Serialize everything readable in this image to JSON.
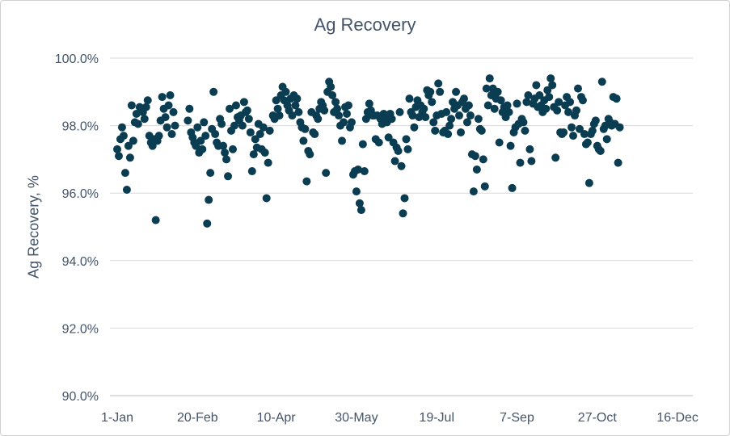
{
  "chart_data": {
    "type": "scatter",
    "title": "Ag Recovery",
    "xlabel": "",
    "ylabel": "Ag Recovery, %",
    "xlim": [
      0,
      357
    ],
    "ylim": [
      90.0,
      100.0
    ],
    "y_ticks": [
      {
        "value": 90,
        "label": "90.0%"
      },
      {
        "value": 92,
        "label": "92.0%"
      },
      {
        "value": 94,
        "label": "94.0%"
      },
      {
        "value": 96,
        "label": "96.0%"
      },
      {
        "value": 98,
        "label": "98.0%"
      },
      {
        "value": 100,
        "label": "100.0%"
      }
    ],
    "x_ticks": [
      {
        "value": 0,
        "label": "1-Jan"
      },
      {
        "value": 50,
        "label": "20-Feb"
      },
      {
        "value": 99,
        "label": "10-Apr"
      },
      {
        "value": 149,
        "label": "30-May"
      },
      {
        "value": 199,
        "label": "19-Jul"
      },
      {
        "value": 249,
        "label": "7-Sep"
      },
      {
        "value": 299,
        "label": "27-Oct"
      },
      {
        "value": 349,
        "label": "16-Dec"
      }
    ],
    "grid": "horizontal",
    "marker_color": "#0b3d52",
    "series": [
      {
        "points": [
          [
            0,
            97.3
          ],
          [
            1,
            97.1
          ],
          [
            2,
            97.6
          ],
          [
            3,
            97.95
          ],
          [
            4,
            97.7
          ],
          [
            5,
            96.6
          ],
          [
            6,
            96.1
          ],
          [
            7,
            97.4
          ],
          [
            8,
            97.05
          ],
          [
            9,
            98.6
          ],
          [
            10,
            97.55
          ],
          [
            11,
            98.1
          ],
          [
            12,
            98.35
          ],
          [
            13,
            98.05
          ],
          [
            14,
            98.55
          ],
          [
            15,
            98.5
          ],
          [
            16,
            98.4
          ],
          [
            17,
            98.2
          ],
          [
            18,
            98.55
          ],
          [
            19,
            98.75
          ],
          [
            20,
            97.7
          ],
          [
            21,
            97.5
          ],
          [
            22,
            97.4
          ],
          [
            23,
            97.6
          ],
          [
            24,
            95.2
          ],
          [
            25,
            97.55
          ],
          [
            26,
            97.7
          ],
          [
            27,
            98.15
          ],
          [
            28,
            98.85
          ],
          [
            29,
            98.5
          ],
          [
            30,
            98.25
          ],
          [
            31,
            97.95
          ],
          [
            32,
            98.6
          ],
          [
            33,
            98.9
          ],
          [
            34,
            97.75
          ],
          [
            35,
            98.4
          ],
          [
            36,
            98.0
          ],
          [
            44,
            98.15
          ],
          [
            45,
            98.5
          ],
          [
            46,
            97.8
          ],
          [
            47,
            97.65
          ],
          [
            48,
            97.5
          ],
          [
            49,
            97.4
          ],
          [
            50,
            97.95
          ],
          [
            51,
            97.2
          ],
          [
            52,
            97.55
          ],
          [
            53,
            97.3
          ],
          [
            54,
            98.1
          ],
          [
            55,
            97.7
          ],
          [
            56,
            95.1
          ],
          [
            57,
            95.8
          ],
          [
            58,
            96.6
          ],
          [
            59,
            97.9
          ],
          [
            60,
            99.0
          ],
          [
            61,
            97.75
          ],
          [
            62,
            97.5
          ],
          [
            63,
            97.4
          ],
          [
            64,
            98.2
          ],
          [
            65,
            98.05
          ],
          [
            66,
            97.4
          ],
          [
            67,
            97.2
          ],
          [
            68,
            97.0
          ],
          [
            69,
            96.5
          ],
          [
            70,
            98.5
          ],
          [
            71,
            97.85
          ],
          [
            72,
            97.3
          ],
          [
            73,
            98.0
          ],
          [
            74,
            98.6
          ],
          [
            75,
            98.25
          ],
          [
            76,
            98.15
          ],
          [
            77,
            98.3
          ],
          [
            78,
            98.0
          ],
          [
            79,
            98.7
          ],
          [
            80,
            98.4
          ],
          [
            81,
            98.45
          ],
          [
            82,
            98.2
          ],
          [
            83,
            97.8
          ],
          [
            84,
            96.65
          ],
          [
            85,
            97.15
          ],
          [
            86,
            97.6
          ],
          [
            87,
            97.35
          ],
          [
            88,
            98.05
          ],
          [
            89,
            97.75
          ],
          [
            90,
            97.3
          ],
          [
            91,
            97.95
          ],
          [
            92,
            97.2
          ],
          [
            93,
            95.85
          ],
          [
            94,
            96.9
          ],
          [
            95,
            97.85
          ],
          [
            97,
            98.3
          ],
          [
            98,
            98.2
          ],
          [
            99,
            98.75
          ],
          [
            100,
            98.5
          ],
          [
            101,
            98.3
          ],
          [
            102,
            98.9
          ],
          [
            103,
            99.15
          ],
          [
            104,
            98.75
          ],
          [
            105,
            99.0
          ],
          [
            106,
            98.6
          ],
          [
            107,
            98.45
          ],
          [
            108,
            98.8
          ],
          [
            109,
            98.3
          ],
          [
            110,
            98.9
          ],
          [
            111,
            98.6
          ],
          [
            112,
            98.8
          ],
          [
            113,
            98.4
          ],
          [
            114,
            98.1
          ],
          [
            115,
            97.95
          ],
          [
            116,
            97.55
          ],
          [
            117,
            97.9
          ],
          [
            118,
            96.35
          ],
          [
            119,
            97.25
          ],
          [
            120,
            97.15
          ],
          [
            121,
            98.4
          ],
          [
            122,
            97.8
          ],
          [
            123,
            97.75
          ],
          [
            124,
            98.3
          ],
          [
            125,
            98.2
          ],
          [
            126,
            98.5
          ],
          [
            127,
            98.7
          ],
          [
            128,
            98.6
          ],
          [
            129,
            98.45
          ],
          [
            130,
            96.6
          ],
          [
            131,
            99.0
          ],
          [
            132,
            99.3
          ],
          [
            133,
            99.15
          ],
          [
            134,
            98.9
          ],
          [
            135,
            98.4
          ],
          [
            136,
            98.7
          ],
          [
            137,
            98.5
          ],
          [
            138,
            98.3
          ],
          [
            139,
            98.0
          ],
          [
            140,
            97.55
          ],
          [
            141,
            98.1
          ],
          [
            142,
            98.55
          ],
          [
            143,
            98.35
          ],
          [
            144,
            98.6
          ],
          [
            145,
            97.95
          ],
          [
            146,
            98.1
          ],
          [
            147,
            96.55
          ],
          [
            148,
            96.65
          ],
          [
            149,
            96.05
          ],
          [
            150,
            96.7
          ],
          [
            151,
            95.7
          ],
          [
            152,
            95.5
          ],
          [
            153,
            97.45
          ],
          [
            154,
            96.65
          ],
          [
            155,
            98.2
          ],
          [
            156,
            98.4
          ],
          [
            157,
            98.65
          ],
          [
            158,
            98.45
          ],
          [
            159,
            98.3
          ],
          [
            160,
            98.3
          ],
          [
            161,
            97.6
          ],
          [
            162,
            98.3
          ],
          [
            163,
            97.5
          ],
          [
            164,
            98.2
          ],
          [
            165,
            98.05
          ],
          [
            166,
            98.35
          ],
          [
            167,
            98.2
          ],
          [
            168,
            98.1
          ],
          [
            169,
            97.65
          ],
          [
            170,
            98.35
          ],
          [
            171,
            98.2
          ],
          [
            172,
            97.5
          ],
          [
            173,
            96.95
          ],
          [
            174,
            97.35
          ],
          [
            175,
            97.25
          ],
          [
            176,
            98.4
          ],
          [
            177,
            96.8
          ],
          [
            178,
            95.4
          ],
          [
            179,
            95.85
          ],
          [
            180,
            97.6
          ],
          [
            181,
            97.3
          ],
          [
            182,
            98.8
          ],
          [
            183,
            98.4
          ],
          [
            184,
            98.3
          ],
          [
            185,
            97.95
          ],
          [
            186,
            98.55
          ],
          [
            187,
            98.75
          ],
          [
            188,
            98.25
          ],
          [
            189,
            98.6
          ],
          [
            190,
            98.4
          ],
          [
            191,
            98.5
          ],
          [
            192,
            98.25
          ],
          [
            193,
            99.05
          ],
          [
            194,
            98.9
          ],
          [
            195,
            99.0
          ],
          [
            196,
            98.7
          ],
          [
            197,
            98.1
          ],
          [
            198,
            97.85
          ],
          [
            199,
            98.3
          ],
          [
            200,
            99.25
          ],
          [
            201,
            99.0
          ],
          [
            202,
            98.35
          ],
          [
            203,
            97.8
          ],
          [
            204,
            97.85
          ],
          [
            205,
            98.4
          ],
          [
            206,
            97.75
          ],
          [
            207,
            98.0
          ],
          [
            208,
            98.2
          ],
          [
            209,
            98.7
          ],
          [
            210,
            98.5
          ],
          [
            211,
            99.0
          ],
          [
            212,
            98.6
          ],
          [
            213,
            98.3
          ],
          [
            214,
            97.8
          ],
          [
            215,
            98.7
          ],
          [
            216,
            98.8
          ],
          [
            217,
            98.5
          ],
          [
            218,
            98.1
          ],
          [
            219,
            98.6
          ],
          [
            220,
            98.3
          ],
          [
            221,
            97.15
          ],
          [
            222,
            96.05
          ],
          [
            223,
            97.1
          ],
          [
            224,
            96.7
          ],
          [
            225,
            98.2
          ],
          [
            226,
            97.9
          ],
          [
            227,
            97.85
          ],
          [
            228,
            97.0
          ],
          [
            229,
            96.2
          ],
          [
            230,
            99.1
          ],
          [
            231,
            98.6
          ],
          [
            232,
            99.4
          ],
          [
            233,
            98.9
          ],
          [
            234,
            99.1
          ],
          [
            235,
            98.5
          ],
          [
            236,
            98.8
          ],
          [
            237,
            99.0
          ],
          [
            238,
            97.5
          ],
          [
            239,
            98.75
          ],
          [
            240,
            98.4
          ],
          [
            241,
            98.55
          ],
          [
            242,
            98.25
          ],
          [
            243,
            98.6
          ],
          [
            244,
            98.4
          ],
          [
            245,
            97.4
          ],
          [
            246,
            96.15
          ],
          [
            247,
            97.8
          ],
          [
            248,
            97.95
          ],
          [
            249,
            98.65
          ],
          [
            250,
            98.05
          ],
          [
            251,
            96.9
          ],
          [
            252,
            98.2
          ],
          [
            253,
            98.1
          ],
          [
            254,
            97.85
          ],
          [
            255,
            98.7
          ],
          [
            256,
            98.9
          ],
          [
            257,
            97.3
          ],
          [
            258,
            96.95
          ],
          [
            259,
            98.65
          ],
          [
            260,
            98.8
          ],
          [
            261,
            99.2
          ],
          [
            262,
            98.55
          ],
          [
            263,
            98.9
          ],
          [
            264,
            98.6
          ],
          [
            265,
            98.4
          ],
          [
            266,
            98.75
          ],
          [
            267,
            98.5
          ],
          [
            268,
            99.05
          ],
          [
            269,
            98.85
          ],
          [
            270,
            99.4
          ],
          [
            271,
            99.2
          ],
          [
            272,
            98.55
          ],
          [
            273,
            97.05
          ],
          [
            274,
            98.45
          ],
          [
            275,
            98.7
          ],
          [
            276,
            97.8
          ],
          [
            277,
            97.75
          ],
          [
            278,
            97.8
          ],
          [
            279,
            98.6
          ],
          [
            280,
            98.85
          ],
          [
            281,
            98.4
          ],
          [
            282,
            98.7
          ],
          [
            283,
            97.95
          ],
          [
            284,
            97.7
          ],
          [
            285,
            98.3
          ],
          [
            286,
            98.45
          ],
          [
            287,
            99.1
          ],
          [
            288,
            97.9
          ],
          [
            289,
            98.85
          ],
          [
            290,
            98.75
          ],
          [
            291,
            97.75
          ],
          [
            292,
            97.45
          ],
          [
            293,
            97.5
          ],
          [
            294,
            96.3
          ],
          [
            295,
            97.75
          ],
          [
            296,
            97.85
          ],
          [
            297,
            98.05
          ],
          [
            298,
            98.15
          ],
          [
            299,
            97.4
          ],
          [
            300,
            97.3
          ],
          [
            301,
            97.25
          ],
          [
            302,
            99.3
          ],
          [
            303,
            97.9
          ],
          [
            304,
            98.0
          ],
          [
            305,
            97.6
          ],
          [
            306,
            98.2
          ],
          [
            307,
            98.1
          ],
          [
            308,
            98.0
          ],
          [
            309,
            98.85
          ],
          [
            310,
            98.05
          ],
          [
            311,
            98.8
          ],
          [
            312,
            96.9
          ],
          [
            313,
            97.95
          ]
        ]
      }
    ]
  }
}
